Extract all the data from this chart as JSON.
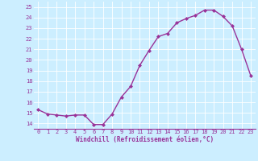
{
  "x": [
    0,
    1,
    2,
    3,
    4,
    5,
    6,
    7,
    8,
    9,
    10,
    11,
    12,
    13,
    14,
    15,
    16,
    17,
    18,
    19,
    20,
    21,
    22,
    23
  ],
  "y": [
    15.3,
    14.9,
    14.8,
    14.7,
    14.8,
    14.8,
    13.9,
    13.9,
    14.9,
    16.5,
    17.5,
    19.5,
    20.9,
    22.2,
    22.5,
    23.5,
    23.9,
    24.2,
    24.7,
    24.7,
    24.1,
    23.2,
    21.0,
    18.5
  ],
  "xlabel": "Windchill (Refroidissement éolien,°C)",
  "ylim": [
    13.5,
    25.5
  ],
  "xlim": [
    -0.5,
    23.5
  ],
  "yticks": [
    14,
    15,
    16,
    17,
    18,
    19,
    20,
    21,
    22,
    23,
    24,
    25
  ],
  "xticks": [
    0,
    1,
    2,
    3,
    4,
    5,
    6,
    7,
    8,
    9,
    10,
    11,
    12,
    13,
    14,
    15,
    16,
    17,
    18,
    19,
    20,
    21,
    22,
    23
  ],
  "line_color": "#993399",
  "marker": "D",
  "marker_size": 2.0,
  "bg_color": "#cceeff",
  "grid_color": "#aaddcc",
  "tick_label_color": "#993399",
  "xlabel_color": "#993399",
  "line_width": 1.0,
  "tick_fontsize": 5.0,
  "xlabel_fontsize": 5.5
}
